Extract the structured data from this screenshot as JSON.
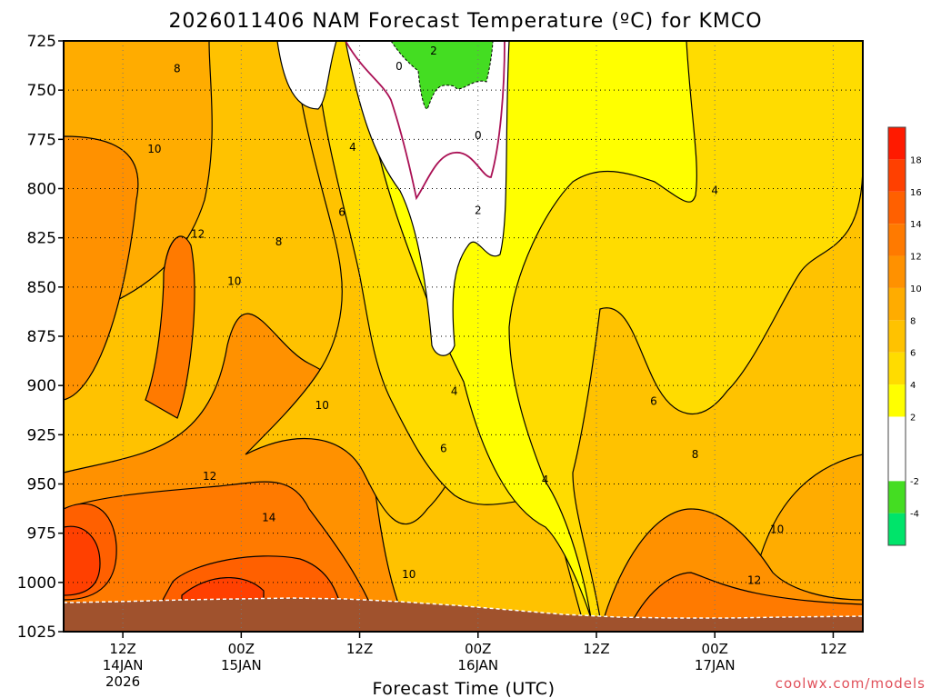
{
  "chart_data": {
    "type": "heatmap",
    "title": "2026011406 NAM Forecast Temperature (ºC) for KMCO",
    "xlabel": "Forecast Time (UTC)",
    "ylabel": "",
    "credit": "coolwx.com/models",
    "x_hours_range": [
      6,
      87
    ],
    "ylim": [
      1025,
      725
    ],
    "y_ticks": [
      725,
      750,
      775,
      800,
      825,
      850,
      875,
      900,
      925,
      950,
      975,
      1000,
      1025
    ],
    "x_ticks": [
      {
        "hour": 12,
        "label": "12Z",
        "date": "14JAN",
        "year": "2026"
      },
      {
        "hour": 24,
        "label": "00Z",
        "date": "15JAN",
        "year": ""
      },
      {
        "hour": 36,
        "label": "12Z",
        "date": "",
        "year": ""
      },
      {
        "hour": 48,
        "label": "00Z",
        "date": "16JAN",
        "year": ""
      },
      {
        "hour": 60,
        "label": "12Z",
        "date": "",
        "year": ""
      },
      {
        "hour": 72,
        "label": "00Z",
        "date": "17JAN",
        "year": ""
      },
      {
        "hour": 84,
        "label": "12Z",
        "date": "",
        "year": ""
      }
    ],
    "grid": true,
    "legend": "right",
    "colorbar": {
      "ticks": [
        -4,
        -2,
        2,
        4,
        6,
        8,
        10,
        12,
        14,
        16,
        18
      ],
      "bins": [
        {
          "from": -6,
          "to": -4,
          "color": "#00e46a"
        },
        {
          "from": -4,
          "to": -2,
          "color": "#44dd22"
        },
        {
          "from": -2,
          "to": 2,
          "color": "#ffffff"
        },
        {
          "from": 2,
          "to": 4,
          "color": "#ffff00"
        },
        {
          "from": 4,
          "to": 6,
          "color": "#ffdc00"
        },
        {
          "from": 6,
          "to": 8,
          "color": "#ffc200"
        },
        {
          "from": 8,
          "to": 10,
          "color": "#ffac00"
        },
        {
          "from": 10,
          "to": 12,
          "color": "#ff9100"
        },
        {
          "from": 12,
          "to": 14,
          "color": "#ff7a00"
        },
        {
          "from": 14,
          "to": 16,
          "color": "#ff6000"
        },
        {
          "from": 16,
          "to": 18,
          "color": "#ff4000"
        },
        {
          "from": 18,
          "to": 20,
          "color": "#ff1a00"
        }
      ]
    },
    "ground_color": "#a0522d",
    "freezing_color": "#aa1155",
    "contour_labels": [
      {
        "text": "8",
        "hour": 17.5,
        "p": 739
      },
      {
        "text": "10",
        "hour": 15.2,
        "p": 780
      },
      {
        "text": "12",
        "hour": 19.6,
        "p": 823
      },
      {
        "text": "10",
        "hour": 23.3,
        "p": 847
      },
      {
        "text": "8",
        "hour": 27.8,
        "p": 827
      },
      {
        "text": "6",
        "hour": 34.2,
        "p": 812
      },
      {
        "text": "4",
        "hour": 35.3,
        "p": 779
      },
      {
        "text": "0",
        "hour": 40.0,
        "p": 738
      },
      {
        "text": "2",
        "hour": 43.5,
        "p": 730
      },
      {
        "text": "0",
        "hour": 48.0,
        "p": 773
      },
      {
        "text": "2",
        "hour": 48.0,
        "p": 811
      },
      {
        "text": "4",
        "hour": 72.0,
        "p": 801
      },
      {
        "text": "10",
        "hour": 32.2,
        "p": 910
      },
      {
        "text": "4",
        "hour": 45.6,
        "p": 903
      },
      {
        "text": "6",
        "hour": 44.5,
        "p": 932
      },
      {
        "text": "12",
        "hour": 20.8,
        "p": 946
      },
      {
        "text": "14",
        "hour": 26.8,
        "p": 967
      },
      {
        "text": "4",
        "hour": 54.8,
        "p": 948
      },
      {
        "text": "6",
        "hour": 65.8,
        "p": 908
      },
      {
        "text": "8",
        "hour": 70.0,
        "p": 935
      },
      {
        "text": "10",
        "hour": 41.0,
        "p": 996
      },
      {
        "text": "10",
        "hour": 78.3,
        "p": 973
      },
      {
        "text": "12",
        "hour": 76.0,
        "p": 999
      }
    ]
  }
}
